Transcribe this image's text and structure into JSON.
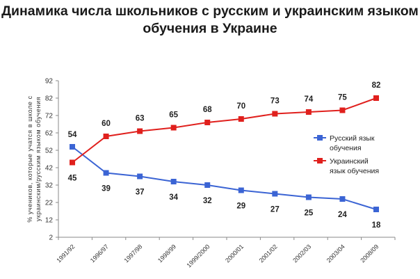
{
  "chart_data": {
    "type": "line",
    "title": "Динамика числа школьников с русским и украинским языком обучения в Украине",
    "ylabel": "% учеников, которые учатся в школе с украинским/русским языком обучения",
    "xlabel": "",
    "categories": [
      "1991/92",
      "1996/97",
      "1997/98",
      "1998/99",
      "1999/2000",
      "2000/01",
      "2001/02",
      "2002/03",
      "2003/04",
      "2008/09"
    ],
    "ylim": [
      2,
      92
    ],
    "yticks": [
      2,
      12,
      22,
      32,
      42,
      52,
      62,
      72,
      82,
      92
    ],
    "grid": false,
    "legend_position": "right",
    "series": [
      {
        "name": "Русский язык обучения",
        "color": "#3b64d4",
        "marker": "square",
        "values": [
          54,
          39,
          37,
          34,
          32,
          29,
          27,
          25,
          24,
          18
        ]
      },
      {
        "name": "Украинский язык обучения",
        "color": "#e0201d",
        "marker": "square",
        "values": [
          45,
          60,
          63,
          65,
          68,
          70,
          73,
          74,
          75,
          82
        ]
      }
    ]
  }
}
